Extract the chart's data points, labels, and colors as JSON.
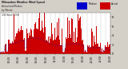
{
  "bg_color": "#d4d0c8",
  "plot_bg_color": "#ffffff",
  "actual_color": "#cc0000",
  "median_color": "#0000cc",
  "n_minutes": 1440,
  "ylim": [
    0,
    9
  ],
  "yticks": [
    0,
    2,
    4,
    6,
    8
  ],
  "seed": 42,
  "title_lines": [
    "Milwaukee Weather Wind Speed",
    "Actual and Median",
    "by Minute",
    "(24 Hours) (Old)"
  ],
  "legend_median_label": "Median",
  "legend_actual_label": "Actual"
}
